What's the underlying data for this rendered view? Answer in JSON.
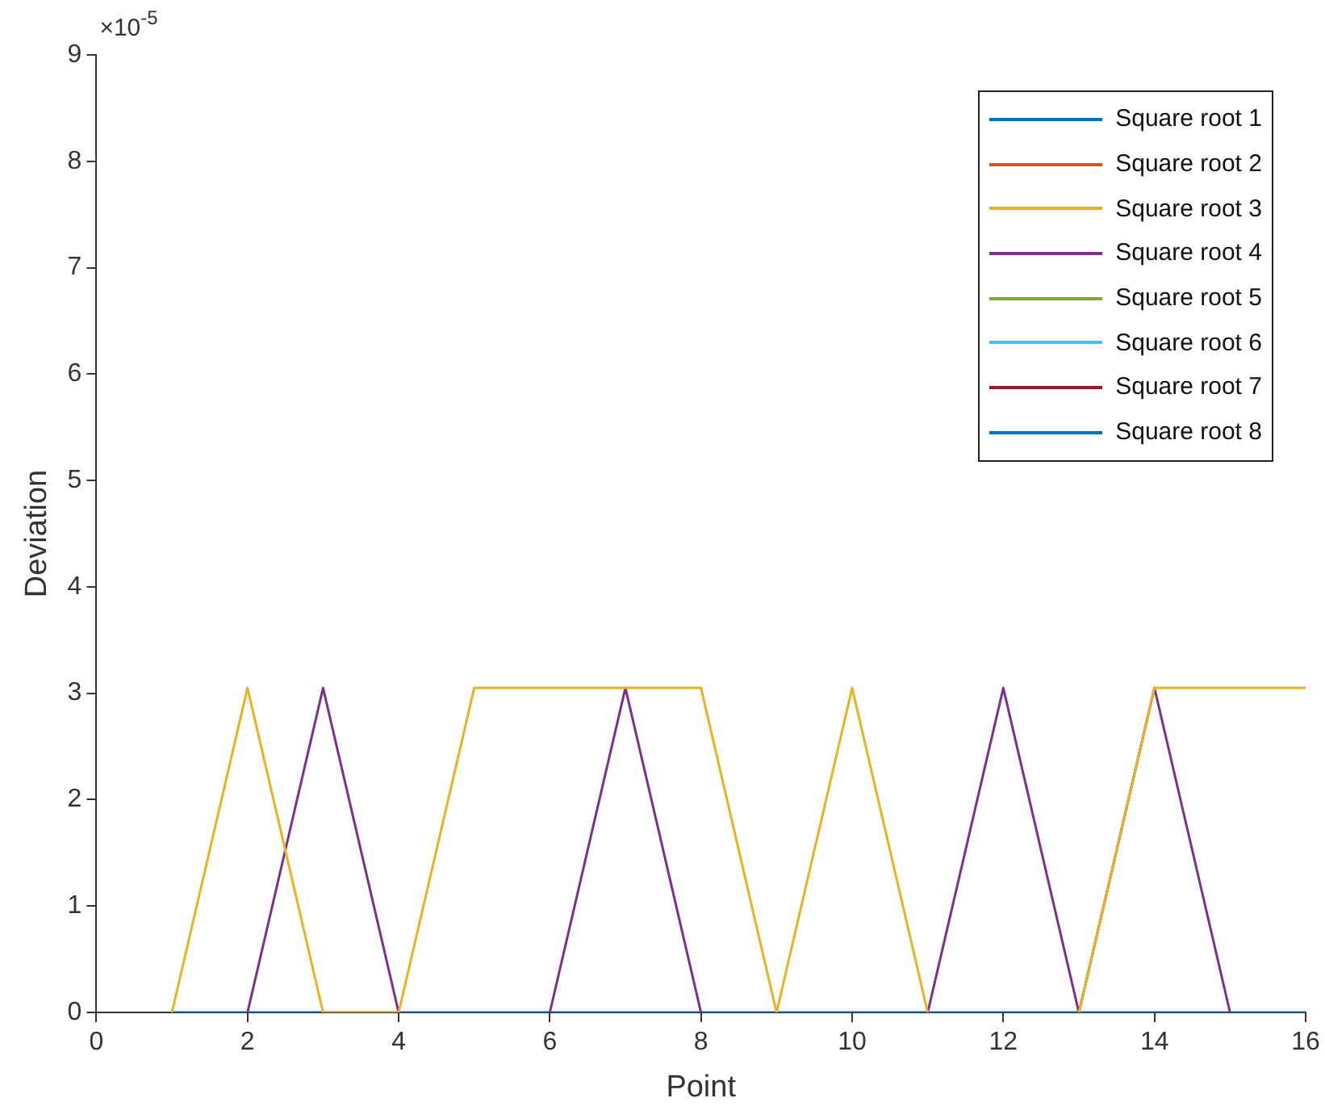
{
  "chart_data": {
    "type": "line",
    "xlabel": "Point",
    "ylabel": "Deviation",
    "annotations": [
      "×10$^{-5}$"
    ],
    "x": [
      1,
      2,
      3,
      4,
      5,
      6,
      7,
      8,
      9,
      10,
      11,
      12,
      13,
      14,
      15,
      16
    ],
    "xlim": [
      0,
      16
    ],
    "xticks": [
      0,
      2,
      4,
      6,
      8,
      10,
      12,
      14,
      16
    ],
    "ylim": [
      0,
      9
    ],
    "yticks": [
      0,
      1,
      2,
      3,
      4,
      5,
      6,
      7,
      8,
      9
    ],
    "grid": false,
    "legend": "top right",
    "marker": "none",
    "line_style": "solid",
    "series": [
      {
        "name": "Square root 1",
        "color": "#0072bd",
        "values": [
          null,
          null,
          null,
          null,
          null,
          null,
          null,
          null,
          null,
          null,
          null,
          null,
          null,
          null,
          null,
          null
        ]
      },
      {
        "name": "Square root 2",
        "color": "#d95319",
        "values": [
          null,
          null,
          null,
          null,
          null,
          null,
          null,
          null,
          null,
          null,
          null,
          null,
          null,
          null,
          null,
          null
        ]
      },
      {
        "name": "Square root 3",
        "color": "#edb120",
        "values": [
          0,
          3.05,
          0,
          0,
          3.05,
          3.05,
          3.05,
          3.05,
          0,
          3.05,
          0,
          null,
          0,
          3.05,
          3.05,
          3.05
        ]
      },
      {
        "name": "Square root 4",
        "color": "#7e2f8e",
        "values": [
          null,
          0,
          3.05,
          0,
          null,
          0,
          3.05,
          0,
          null,
          null,
          0,
          3.05,
          0,
          3.05,
          0,
          null
        ]
      },
      {
        "name": "Square root 5",
        "color": "#77ac30",
        "values": [
          null,
          null,
          null,
          null,
          null,
          null,
          null,
          null,
          null,
          null,
          null,
          null,
          null,
          null,
          null,
          null
        ]
      },
      {
        "name": "Square root 6",
        "color": "#4dbeee",
        "values": [
          null,
          null,
          null,
          null,
          null,
          null,
          null,
          null,
          null,
          null,
          null,
          null,
          null,
          null,
          null,
          null
        ]
      },
      {
        "name": "Square root 7",
        "color": "#a2142f",
        "values": [
          null,
          null,
          null,
          null,
          null,
          null,
          null,
          null,
          null,
          null,
          null,
          null,
          null,
          null,
          null,
          null
        ]
      },
      {
        "name": "Square root 8",
        "color": "#0072bd",
        "values": [
          0,
          0,
          0,
          0,
          0,
          0,
          0,
          0,
          0,
          0,
          0,
          0,
          0,
          0,
          0,
          0
        ]
      }
    ]
  }
}
